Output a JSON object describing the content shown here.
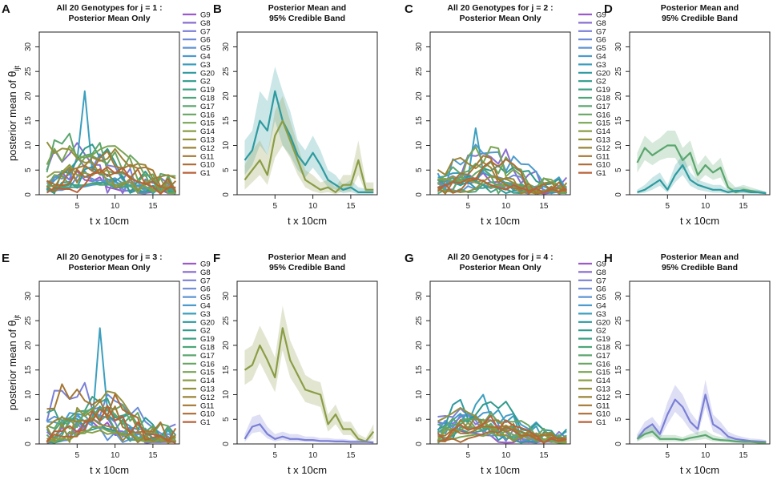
{
  "figure": {
    "y_axis_label_main": "posterior mean of ",
    "y_axis_label_theta": "θ",
    "y_axis_label_sub": "ijt",
    "legend_genotypes": [
      "G9",
      "G8",
      "G7",
      "G6",
      "G5",
      "G4",
      "G3",
      "G20",
      "G2",
      "G19",
      "G18",
      "G17",
      "G16",
      "G15",
      "G14",
      "G13",
      "G12",
      "G11",
      "G10",
      "G1"
    ],
    "legend_colors": [
      "#9b59c9",
      "#8a6fd0",
      "#7a7fd6",
      "#6b8ad6",
      "#5f94d3",
      "#4d9bcd",
      "#3c9fbe",
      "#2e9a9f",
      "#2f9b8c",
      "#3fa084",
      "#4ea57a",
      "#5aa66e",
      "#68a562",
      "#79a452",
      "#8a9d46",
      "#93913d",
      "#9a8436",
      "#a47732",
      "#ad6b34",
      "#b96139"
    ],
    "colors": {
      "teal": "#2e9a9f",
      "olive": "#8a9d46",
      "green": "#5aa66e",
      "periwinkle": "#7a7fd6",
      "band_teal": "#2e9a9f",
      "band_olive": "#8a9d46",
      "band_green": "#5aa66e",
      "band_periwinkle": "#7a7fd6"
    }
  },
  "chart_data": [
    {
      "panel": "A",
      "type": "line",
      "title_line1": "All 20 Genotypes for j = 1 :",
      "title_line2": "Posterior Mean Only",
      "xlabel": "t x 10cm",
      "ylabel": "posterior mean of θijt",
      "xlim": [
        0,
        18.5
      ],
      "ylim": [
        0,
        33
      ],
      "xticks": [
        "5",
        "10",
        "15"
      ],
      "yticks": [
        "0",
        "5",
        "10",
        "15",
        "20",
        "25",
        "30"
      ],
      "legend": true,
      "grid": false,
      "dense": true,
      "seed": 11,
      "peak": 21.0,
      "max_typical": 9
    },
    {
      "panel": "B",
      "type": "line",
      "title_line1": "Posterior Mean and",
      "title_line2": "95% Credible Band",
      "xlabel": "t x 10cm",
      "ylabel": "",
      "xlim": [
        0,
        18.5
      ],
      "ylim": [
        0,
        33
      ],
      "xticks": [
        "5",
        "10",
        "15"
      ],
      "yticks": [
        "0",
        "5",
        "10",
        "15",
        "20",
        "25",
        "30"
      ],
      "legend": false,
      "grid": false,
      "x": [
        1,
        2,
        3,
        4,
        5,
        6,
        7,
        8,
        9,
        10,
        11,
        12,
        13,
        14,
        15,
        16,
        17,
        18
      ],
      "series": [
        {
          "name": "teal",
          "color": "teal",
          "values": [
            7,
            9,
            15,
            13,
            21,
            15,
            12,
            8,
            6,
            8.5,
            6,
            3,
            2,
            1,
            1.5,
            0.5,
            0.5,
            0.5
          ],
          "lower": [
            4,
            6,
            10,
            8,
            15,
            10,
            8,
            5,
            3.5,
            5.5,
            3.5,
            1.5,
            1,
            0.3,
            0.5,
            0.1,
            0.1,
            0.1
          ],
          "upper": [
            11,
            13,
            21,
            19,
            26,
            21,
            17,
            11,
            9,
            12,
            9,
            5,
            4,
            2,
            3,
            1.5,
            1.2,
            1.2
          ]
        },
        {
          "name": "olive",
          "color": "olive",
          "values": [
            3,
            5,
            7,
            4,
            12,
            15,
            11,
            7,
            3,
            2,
            1,
            1.5,
            0.5,
            2,
            2,
            7,
            1,
            1
          ],
          "lower": [
            1,
            2.5,
            4,
            2,
            7.5,
            10,
            7.5,
            4,
            1.5,
            0.7,
            0.3,
            0.5,
            0.1,
            0.7,
            0.7,
            4,
            0.3,
            0.3
          ],
          "upper": [
            6,
            9,
            11,
            8,
            17,
            20,
            15,
            10,
            5,
            4,
            2.5,
            3,
            1.5,
            4,
            4,
            11,
            2.5,
            2.5
          ]
        }
      ]
    },
    {
      "panel": "C",
      "type": "line",
      "title_line1": "All 20 Genotypes for j = 2 :",
      "title_line2": "Posterior Mean Only",
      "xlabel": "t x 10cm",
      "ylabel": "",
      "xlim": [
        0,
        18.5
      ],
      "ylim": [
        0,
        33
      ],
      "xticks": [
        "5",
        "10",
        "15"
      ],
      "yticks": [
        "0",
        "5",
        "10",
        "15",
        "20",
        "25",
        "30"
      ],
      "legend": true,
      "grid": false,
      "dense": true,
      "seed": 23,
      "peak": 13.5,
      "max_typical": 7
    },
    {
      "panel": "D",
      "type": "line",
      "title_line1": "Posterior Mean and",
      "title_line2": "95% Credible Band",
      "xlabel": "t x 10cm",
      "ylabel": "",
      "xlim": [
        0,
        18.5
      ],
      "ylim": [
        0,
        33
      ],
      "xticks": [
        "5",
        "10",
        "15"
      ],
      "yticks": [
        "0",
        "5",
        "10",
        "15",
        "20",
        "25",
        "30"
      ],
      "legend": false,
      "grid": false,
      "x": [
        1,
        2,
        3,
        4,
        5,
        6,
        7,
        8,
        9,
        10,
        11,
        12,
        13,
        14,
        15,
        16,
        17,
        18
      ],
      "series": [
        {
          "name": "green",
          "color": "green",
          "values": [
            6.5,
            9.5,
            8,
            9,
            10,
            10,
            7,
            8.5,
            4,
            6,
            4.5,
            5.5,
            1.5,
            0.5,
            1,
            0.8,
            0.5,
            0.3
          ],
          "lower": [
            4.5,
            7,
            6,
            7,
            7.5,
            7.5,
            5,
            6,
            2.5,
            4,
            3,
            3.5,
            0.7,
            0.2,
            0.4,
            0.3,
            0.2,
            0.1
          ],
          "upper": [
            8.5,
            12,
            10.5,
            11.5,
            13,
            13,
            9.5,
            11,
            6,
            8,
            6,
            7.5,
            3,
            1.5,
            2,
            1.5,
            1,
            0.6
          ]
        },
        {
          "name": "teal",
          "color": "teal",
          "values": [
            0.5,
            1,
            2,
            3,
            1,
            4,
            6,
            3,
            2,
            1.5,
            1,
            1,
            0.5,
            0.8,
            0.8,
            0.5,
            0.5,
            0.3
          ],
          "lower": [
            0.2,
            0.4,
            1,
            1.8,
            0.4,
            2.5,
            4,
            1.8,
            1,
            0.7,
            0.4,
            0.4,
            0.2,
            0.3,
            0.3,
            0.2,
            0.2,
            0.1
          ],
          "upper": [
            1,
            2,
            3.5,
            4.5,
            2,
            6,
            8,
            4.5,
            3,
            2.5,
            2,
            2,
            1,
            1.5,
            1.5,
            1,
            1,
            0.6
          ]
        }
      ]
    },
    {
      "panel": "E",
      "type": "line",
      "title_line1": "All 20 Genotypes for j = 3 :",
      "title_line2": "Posterior Mean Only",
      "xlabel": "t x 10cm",
      "ylabel": "posterior mean of θijt",
      "xlim": [
        0,
        18.5
      ],
      "ylim": [
        0,
        33
      ],
      "xticks": [
        "5",
        "10",
        "15"
      ],
      "yticks": [
        "0",
        "5",
        "10",
        "15",
        "20",
        "25",
        "30"
      ],
      "legend": true,
      "grid": false,
      "dense": true,
      "seed": 37,
      "peak": 23.5,
      "max_typical": 9
    },
    {
      "panel": "F",
      "type": "line",
      "title_line1": "Posterior Mean and",
      "title_line2": "95% Credible Band",
      "xlabel": "t x 10cm",
      "ylabel": "",
      "xlim": [
        0,
        18.5
      ],
      "ylim": [
        0,
        33
      ],
      "xticks": [
        "5",
        "10",
        "15"
      ],
      "yticks": [
        "0",
        "5",
        "10",
        "15",
        "20",
        "25",
        "30"
      ],
      "legend": false,
      "grid": false,
      "x": [
        1,
        2,
        3,
        4,
        5,
        6,
        7,
        8,
        9,
        10,
        11,
        12,
        13,
        14,
        15,
        16,
        17,
        18
      ],
      "series": [
        {
          "name": "olive",
          "color": "olive",
          "values": [
            15,
            16,
            20,
            17,
            13.5,
            23.5,
            17,
            14,
            11,
            10.5,
            10,
            4,
            6,
            3,
            3,
            1,
            0.5,
            2.5
          ],
          "lower": [
            12,
            13,
            16.5,
            13.5,
            10.5,
            19,
            13.5,
            11,
            8.5,
            8,
            7.5,
            2.5,
            4,
            1.8,
            1.8,
            0.4,
            0.2,
            1.2
          ],
          "upper": [
            19,
            20,
            24,
            21,
            17.5,
            28,
            21,
            17.5,
            14,
            13,
            12.5,
            6,
            8,
            4.5,
            4.5,
            2,
            1.2,
            4
          ]
        },
        {
          "name": "periwinkle",
          "color": "periwinkle",
          "values": [
            1,
            3.5,
            4,
            2,
            1,
            1.5,
            1,
            1,
            0.8,
            0.8,
            0.6,
            0.6,
            0.5,
            0.5,
            0.4,
            0.4,
            0.4,
            0.3
          ],
          "lower": [
            0.4,
            2.2,
            2.5,
            1.1,
            0.5,
            0.8,
            0.5,
            0.5,
            0.4,
            0.4,
            0.3,
            0.3,
            0.2,
            0.2,
            0.2,
            0.2,
            0.2,
            0.1
          ],
          "upper": [
            2,
            5.5,
            6,
            3.5,
            2,
            2.5,
            2,
            2,
            1.5,
            1.5,
            1.2,
            1.2,
            1,
            1,
            0.8,
            0.8,
            0.8,
            0.6
          ]
        }
      ]
    },
    {
      "panel": "G",
      "type": "line",
      "title_line1": "All 20 Genotypes for j = 4 :",
      "title_line2": "Posterior Mean Only",
      "xlabel": "t x 10cm",
      "ylabel": "",
      "xlim": [
        0,
        18.5
      ],
      "ylim": [
        0,
        33
      ],
      "xticks": [
        "5",
        "10",
        "15"
      ],
      "yticks": [
        "0",
        "5",
        "10",
        "15",
        "20",
        "25",
        "30"
      ],
      "legend": true,
      "grid": false,
      "dense": true,
      "seed": 53,
      "peak": 10.0,
      "max_typical": 5
    },
    {
      "panel": "H",
      "type": "line",
      "title_line1": "Posterior Mean and",
      "title_line2": "95% Credible Band",
      "xlabel": "t x 10cm",
      "ylabel": "",
      "xlim": [
        0,
        18.5
      ],
      "ylim": [
        0,
        33
      ],
      "xticks": [
        "5",
        "10",
        "15"
      ],
      "yticks": [
        "0",
        "5",
        "10",
        "15",
        "20",
        "25",
        "30"
      ],
      "legend": false,
      "grid": false,
      "x": [
        1,
        2,
        3,
        4,
        5,
        6,
        7,
        8,
        9,
        10,
        11,
        12,
        13,
        14,
        15,
        16,
        17,
        18
      ],
      "series": [
        {
          "name": "periwinkle",
          "color": "periwinkle",
          "values": [
            1,
            3,
            4,
            2,
            6,
            9,
            7.5,
            4.5,
            3,
            10,
            4,
            3,
            1.5,
            1,
            0.8,
            0.6,
            0.5,
            0.4
          ],
          "lower": [
            0.5,
            1.8,
            2.5,
            1,
            4,
            6.5,
            5,
            2.8,
            1.8,
            7.5,
            2.5,
            1.8,
            0.8,
            0.5,
            0.4,
            0.3,
            0.2,
            0.2
          ],
          "upper": [
            2,
            4.5,
            5.5,
            3.5,
            8.5,
            12,
            10,
            6.5,
            4.5,
            13,
            6,
            4.5,
            2.5,
            1.8,
            1.4,
            1.1,
            1,
            0.8
          ]
        },
        {
          "name": "green",
          "color": "green",
          "values": [
            1,
            2,
            2.5,
            1,
            1,
            1,
            0.8,
            1.2,
            1.5,
            1.8,
            1,
            0.8,
            0.7,
            0.5,
            0.4,
            0.4,
            0.3,
            0.3
          ],
          "lower": [
            0.5,
            1.2,
            1.5,
            0.5,
            0.5,
            0.5,
            0.4,
            0.6,
            0.8,
            1,
            0.5,
            0.4,
            0.3,
            0.2,
            0.2,
            0.2,
            0.1,
            0.1
          ],
          "upper": [
            1.8,
            3,
            3.6,
            1.8,
            1.8,
            1.8,
            1.4,
            2,
            2.4,
            2.8,
            1.8,
            1.4,
            1.2,
            0.9,
            0.8,
            0.8,
            0.6,
            0.6
          ]
        }
      ]
    }
  ]
}
